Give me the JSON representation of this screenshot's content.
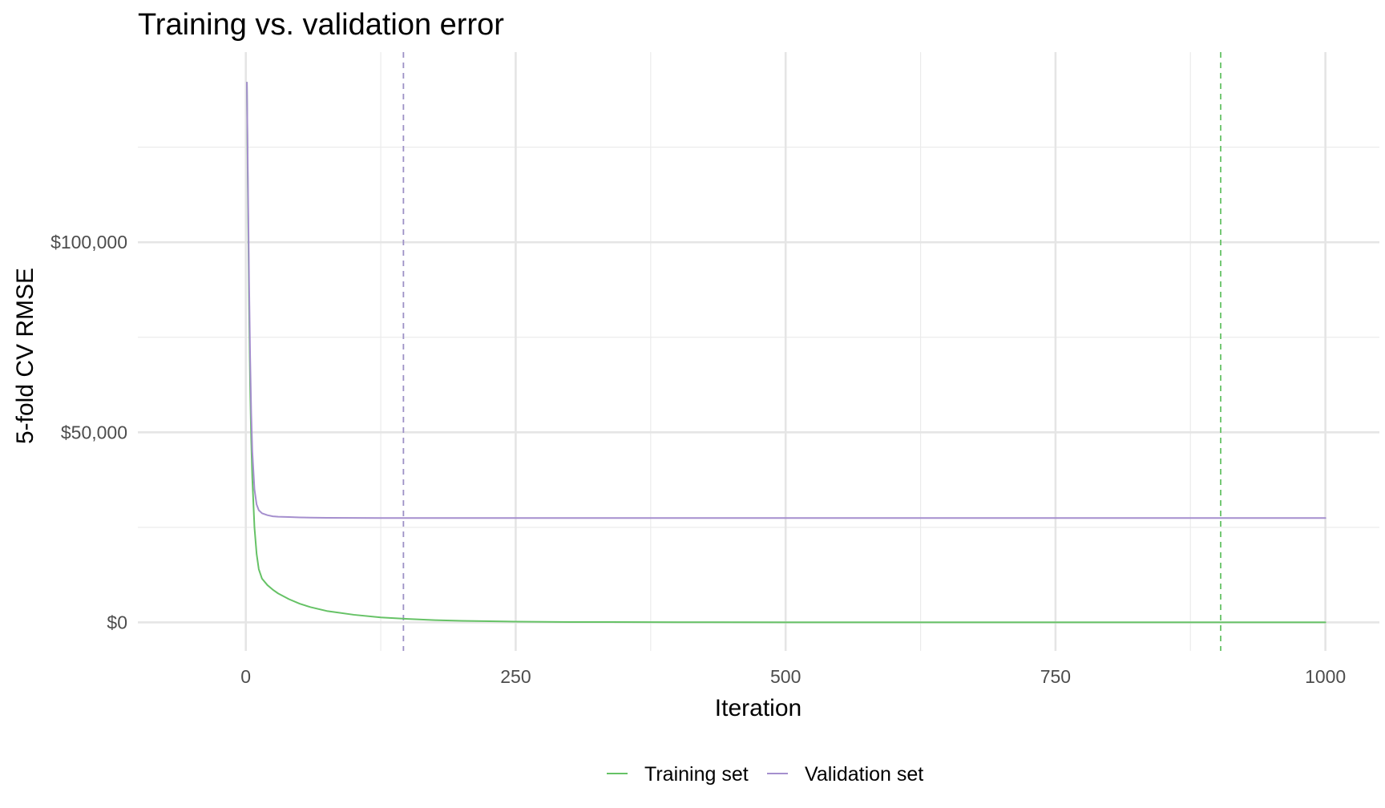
{
  "chart_data": {
    "type": "line",
    "title": "Training vs. validation error",
    "xlabel": "Iteration",
    "ylabel": "5-fold CV RMSE",
    "xlim": [
      -100,
      1050
    ],
    "ylim": [
      -7500,
      150000
    ],
    "x_ticks": [
      0,
      250,
      500,
      750,
      1000
    ],
    "x_tick_labels": [
      "0",
      "250",
      "500",
      "750",
      "1000"
    ],
    "x_minor_ticks": [
      125,
      375,
      625,
      875
    ],
    "y_ticks": [
      0,
      50000,
      100000
    ],
    "y_tick_labels": [
      "$0",
      "$50,000",
      "$100,000"
    ],
    "y_minor_ticks": [
      25000,
      75000,
      125000
    ],
    "grid": true,
    "legend_position": "bottom",
    "series": [
      {
        "name": "Training set",
        "color": "#66c266",
        "x": [
          1,
          2,
          3,
          4,
          5,
          6,
          8,
          10,
          12,
          15,
          20,
          25,
          30,
          40,
          50,
          60,
          75,
          100,
          125,
          150,
          175,
          200,
          250,
          300,
          400,
          500,
          600,
          700,
          800,
          900,
          1000
        ],
        "y": [
          142000,
          110000,
          83000,
          62000,
          48000,
          38000,
          25000,
          18000,
          14000,
          11500,
          9800,
          8600,
          7600,
          6100,
          4900,
          4000,
          3000,
          2000,
          1300,
          900,
          600,
          400,
          200,
          100,
          40,
          15,
          5,
          2,
          1,
          0,
          0
        ]
      },
      {
        "name": "Validation set",
        "color": "#a58fce",
        "x": [
          1,
          2,
          3,
          4,
          5,
          6,
          8,
          10,
          12,
          15,
          20,
          25,
          30,
          40,
          50,
          60,
          75,
          100,
          125,
          150,
          200,
          300,
          400,
          500,
          600,
          700,
          800,
          900,
          1000
        ],
        "y": [
          142000,
          115000,
          90000,
          70000,
          55000,
          45000,
          35000,
          31000,
          29500,
          28700,
          28200,
          27900,
          27800,
          27700,
          27600,
          27550,
          27500,
          27480,
          27460,
          27450,
          27450,
          27440,
          27440,
          27440,
          27440,
          27440,
          27440,
          27440,
          27440
        ]
      }
    ],
    "vlines": [
      {
        "x": 146,
        "color": "#9d91c6",
        "series": "Validation set"
      },
      {
        "x": 903,
        "color": "#66c266",
        "series": "Training set"
      }
    ]
  }
}
